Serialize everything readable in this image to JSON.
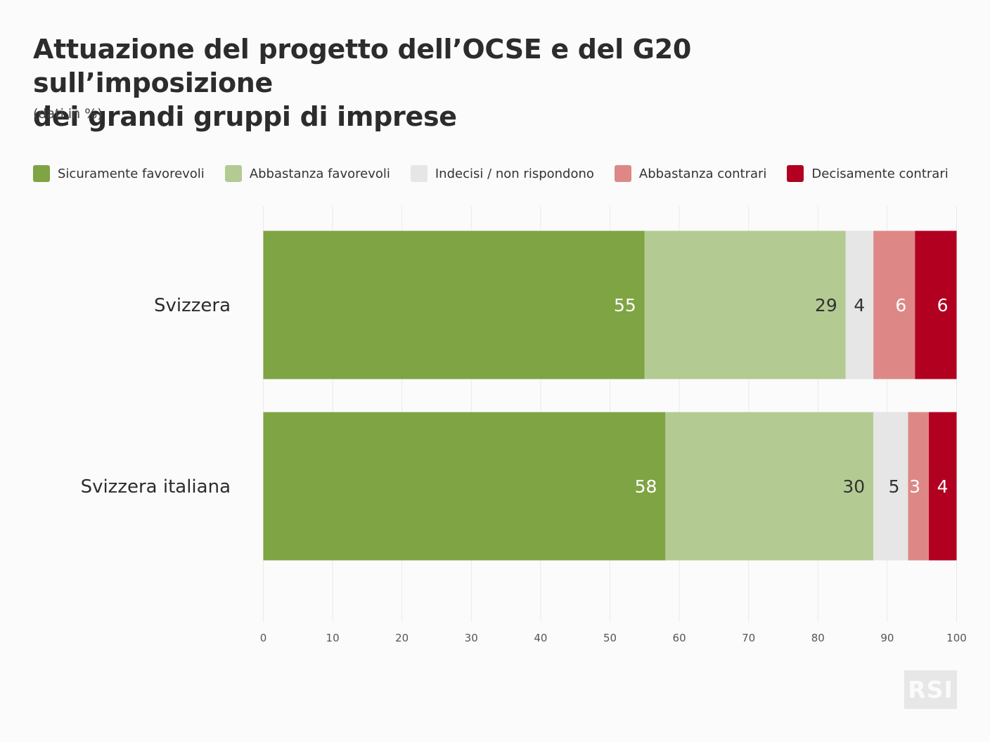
{
  "title_lines": [
    "Attuazione del progetto dell’OCSE e del G20 sull’imposizione",
    "dei grandi gruppi di imprese"
  ],
  "subtitle": "(dati in %)",
  "logo": "RSI",
  "colors": {
    "background": "#fbfbfb",
    "gridline": "#eaeaea",
    "label_light": "#ffffff",
    "label_dark": "#333333"
  },
  "chart_data": {
    "type": "bar",
    "orientation": "horizontal",
    "stacked": true,
    "categories": [
      "Svizzera",
      "Svizzera italiana"
    ],
    "series": [
      {
        "name": "Sicuramente favorevoli",
        "color": "#7fa444",
        "label_color": "#ffffff",
        "values": [
          55,
          58
        ]
      },
      {
        "name": "Abbastanza favorevoli",
        "color": "#b3cb92",
        "label_color": "#333333",
        "values": [
          29,
          30
        ]
      },
      {
        "name": "Indecisi / non rispondono",
        "color": "#e6e6e6",
        "label_color": "#333333",
        "values": [
          4,
          5
        ]
      },
      {
        "name": "Abbastanza contrari",
        "color": "#dd8886",
        "label_color": "#ffffff",
        "values": [
          6,
          3
        ]
      },
      {
        "name": "Decisamente contrari",
        "color": "#b10020",
        "label_color": "#ffffff",
        "values": [
          6,
          4
        ]
      }
    ],
    "xlim": [
      0,
      100
    ],
    "xticks": [
      0,
      10,
      20,
      30,
      40,
      50,
      60,
      70,
      80,
      90,
      100
    ],
    "grid": true,
    "legend_position": "top-left"
  }
}
